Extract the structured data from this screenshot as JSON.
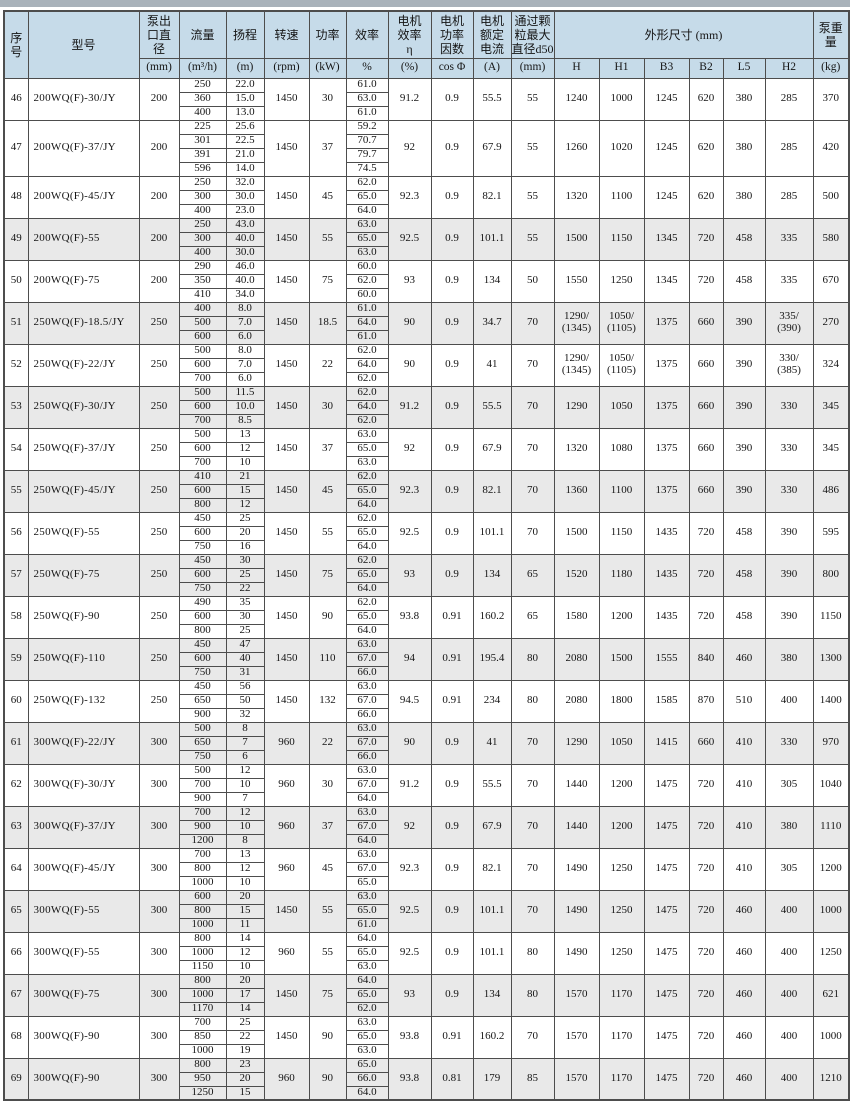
{
  "colors": {
    "header_bg": "#c6dbe9",
    "alt_row_bg": "#e9e9e9",
    "border": "#4d4d4d",
    "top_strip": "#a9b2ba"
  },
  "table": {
    "header": {
      "no": "序\n号",
      "model": "型号",
      "outlet": "泵出\n口直\n径",
      "flow": "流量",
      "head": "扬程",
      "speed": "转速",
      "power": "功率",
      "eff": "效率",
      "motor_eff": "电机\n效率\nη",
      "cos_phi": "电机\n功率\n因数",
      "current": "电机\n额定\n电流",
      "particle": "通过颗\n粒最大\n直径d50",
      "dims": "外形尺寸 (mm)",
      "weight": "泵重\n量",
      "dim_cols": [
        "H",
        "H1",
        "B3",
        "B2",
        "L5",
        "H2"
      ],
      "units": {
        "outlet": "(mm)",
        "flow": "(m³/h)",
        "head": "(m)",
        "speed": "(rpm)",
        "power": "(kW)",
        "eff": "%",
        "motor_eff": "(%)",
        "cos_phi": "cos Φ",
        "current": "(A)",
        "particle": "(mm)",
        "weight": "(kg)"
      }
    },
    "rows": [
      {
        "no": "46",
        "model": "200WQ(F)-30/JY",
        "outlet": "200",
        "flow": [
          "250",
          "360",
          "400"
        ],
        "head": [
          "22.0",
          "15.0",
          "13.0"
        ],
        "speed": "1450",
        "power": "30",
        "eff": [
          "61.0",
          "63.0",
          "61.0"
        ],
        "motor_eff": "91.2",
        "cos_phi": "0.9",
        "current": "55.5",
        "particle": "55",
        "H": "1240",
        "H1": "1000",
        "B3": "1245",
        "B2": "620",
        "L5": "380",
        "H2": "285",
        "weight": "370",
        "shaded": false
      },
      {
        "no": "47",
        "model": "200WQ(F)-37/JY",
        "outlet": "200",
        "flow": [
          "225",
          "301",
          "391",
          "596"
        ],
        "head": [
          "25.6",
          "22.5",
          "21.0",
          "14.0"
        ],
        "speed": "1450",
        "power": "37",
        "eff": [
          "59.2",
          "70.7",
          "79.7",
          "74.5"
        ],
        "motor_eff": "92",
        "cos_phi": "0.9",
        "current": "67.9",
        "particle": "55",
        "H": "1260",
        "H1": "1020",
        "B3": "1245",
        "B2": "620",
        "L5": "380",
        "H2": "285",
        "weight": "420",
        "shaded": false
      },
      {
        "no": "48",
        "model": "200WQ(F)-45/JY",
        "outlet": "200",
        "flow": [
          "250",
          "300",
          "400"
        ],
        "head": [
          "32.0",
          "30.0",
          "23.0"
        ],
        "speed": "1450",
        "power": "45",
        "eff": [
          "62.0",
          "65.0",
          "64.0"
        ],
        "motor_eff": "92.3",
        "cos_phi": "0.9",
        "current": "82.1",
        "particle": "55",
        "H": "1320",
        "H1": "1100",
        "B3": "1245",
        "B2": "620",
        "L5": "380",
        "H2": "285",
        "weight": "500",
        "shaded": false
      },
      {
        "no": "49",
        "model": "200WQ(F)-55",
        "outlet": "200",
        "flow": [
          "250",
          "300",
          "400"
        ],
        "head": [
          "43.0",
          "40.0",
          "30.0"
        ],
        "speed": "1450",
        "power": "55",
        "eff": [
          "63.0",
          "65.0",
          "63.0"
        ],
        "motor_eff": "92.5",
        "cos_phi": "0.9",
        "current": "101.1",
        "particle": "55",
        "H": "1500",
        "H1": "1150",
        "B3": "1345",
        "B2": "720",
        "L5": "458",
        "H2": "335",
        "weight": "580",
        "shaded": true
      },
      {
        "no": "50",
        "model": "200WQ(F)-75",
        "outlet": "200",
        "flow": [
          "290",
          "350",
          "410"
        ],
        "head": [
          "46.0",
          "40.0",
          "34.0"
        ],
        "speed": "1450",
        "power": "75",
        "eff": [
          "60.0",
          "62.0",
          "60.0"
        ],
        "motor_eff": "93",
        "cos_phi": "0.9",
        "current": "134",
        "particle": "50",
        "H": "1550",
        "H1": "1250",
        "B3": "1345",
        "B2": "720",
        "L5": "458",
        "H2": "335",
        "weight": "670",
        "shaded": false
      },
      {
        "no": "51",
        "model": "250WQ(F)-18.5/JY",
        "outlet": "250",
        "flow": [
          "400",
          "500",
          "600"
        ],
        "head": [
          "8.0",
          "7.0",
          "6.0"
        ],
        "speed": "1450",
        "power": "18.5",
        "eff": [
          "61.0",
          "64.0",
          "61.0"
        ],
        "motor_eff": "90",
        "cos_phi": "0.9",
        "current": "34.7",
        "particle": "70",
        "H": "1290/\n(1345)",
        "H1": "1050/\n(1105)",
        "B3": "1375",
        "B2": "660",
        "L5": "390",
        "H2": "335/\n(390)",
        "weight": "270",
        "shaded": true
      },
      {
        "no": "52",
        "model": "250WQ(F)-22/JY",
        "outlet": "250",
        "flow": [
          "500",
          "600",
          "700"
        ],
        "head": [
          "8.0",
          "7.0",
          "6.0"
        ],
        "speed": "1450",
        "power": "22",
        "eff": [
          "62.0",
          "64.0",
          "62.0"
        ],
        "motor_eff": "90",
        "cos_phi": "0.9",
        "current": "41",
        "particle": "70",
        "H": "1290/\n(1345)",
        "H1": "1050/\n(1105)",
        "B3": "1375",
        "B2": "660",
        "L5": "390",
        "H2": "330/\n(385)",
        "weight": "324",
        "shaded": false
      },
      {
        "no": "53",
        "model": "250WQ(F)-30/JY",
        "outlet": "250",
        "flow": [
          "500",
          "600",
          "700"
        ],
        "head": [
          "11.5",
          "10.0",
          "8.5"
        ],
        "speed": "1450",
        "power": "30",
        "eff": [
          "62.0",
          "64.0",
          "62.0"
        ],
        "motor_eff": "91.2",
        "cos_phi": "0.9",
        "current": "55.5",
        "particle": "70",
        "H": "1290",
        "H1": "1050",
        "B3": "1375",
        "B2": "660",
        "L5": "390",
        "H2": "330",
        "weight": "345",
        "shaded": true
      },
      {
        "no": "54",
        "model": "250WQ(F)-37/JY",
        "outlet": "250",
        "flow": [
          "500",
          "600",
          "700"
        ],
        "head": [
          "13",
          "12",
          "10"
        ],
        "speed": "1450",
        "power": "37",
        "eff": [
          "63.0",
          "65.0",
          "63.0"
        ],
        "motor_eff": "92",
        "cos_phi": "0.9",
        "current": "67.9",
        "particle": "70",
        "H": "1320",
        "H1": "1080",
        "B3": "1375",
        "B2": "660",
        "L5": "390",
        "H2": "330",
        "weight": "345",
        "shaded": false
      },
      {
        "no": "55",
        "model": "250WQ(F)-45/JY",
        "outlet": "250",
        "flow": [
          "410",
          "600",
          "800"
        ],
        "head": [
          "21",
          "15",
          "12"
        ],
        "speed": "1450",
        "power": "45",
        "eff": [
          "62.0",
          "65.0",
          "64.0"
        ],
        "motor_eff": "92.3",
        "cos_phi": "0.9",
        "current": "82.1",
        "particle": "70",
        "H": "1360",
        "H1": "1100",
        "B3": "1375",
        "B2": "660",
        "L5": "390",
        "H2": "330",
        "weight": "486",
        "shaded": true
      },
      {
        "no": "56",
        "model": "250WQ(F)-55",
        "outlet": "250",
        "flow": [
          "450",
          "600",
          "750"
        ],
        "head": [
          "25",
          "20",
          "16"
        ],
        "speed": "1450",
        "power": "55",
        "eff": [
          "62.0",
          "65.0",
          "64.0"
        ],
        "motor_eff": "92.5",
        "cos_phi": "0.9",
        "current": "101.1",
        "particle": "70",
        "H": "1500",
        "H1": "1150",
        "B3": "1435",
        "B2": "720",
        "L5": "458",
        "H2": "390",
        "weight": "595",
        "shaded": false
      },
      {
        "no": "57",
        "model": "250WQ(F)-75",
        "outlet": "250",
        "flow": [
          "450",
          "600",
          "750"
        ],
        "head": [
          "30",
          "25",
          "22"
        ],
        "speed": "1450",
        "power": "75",
        "eff": [
          "62.0",
          "65.0",
          "64.0"
        ],
        "motor_eff": "93",
        "cos_phi": "0.9",
        "current": "134",
        "particle": "65",
        "H": "1520",
        "H1": "1180",
        "B3": "1435",
        "B2": "720",
        "L5": "458",
        "H2": "390",
        "weight": "800",
        "shaded": true
      },
      {
        "no": "58",
        "model": "250WQ(F)-90",
        "outlet": "250",
        "flow": [
          "490",
          "600",
          "800"
        ],
        "head": [
          "35",
          "30",
          "25"
        ],
        "speed": "1450",
        "power": "90",
        "eff": [
          "62.0",
          "65.0",
          "64.0"
        ],
        "motor_eff": "93.8",
        "cos_phi": "0.91",
        "current": "160.2",
        "particle": "65",
        "H": "1580",
        "H1": "1200",
        "B3": "1435",
        "B2": "720",
        "L5": "458",
        "H2": "390",
        "weight": "1150",
        "shaded": false
      },
      {
        "no": "59",
        "model": "250WQ(F)-110",
        "outlet": "250",
        "flow": [
          "450",
          "600",
          "750"
        ],
        "head": [
          "47",
          "40",
          "31"
        ],
        "speed": "1450",
        "power": "110",
        "eff": [
          "63.0",
          "67.0",
          "66.0"
        ],
        "motor_eff": "94",
        "cos_phi": "0.91",
        "current": "195.4",
        "particle": "80",
        "H": "2080",
        "H1": "1500",
        "B3": "1555",
        "B2": "840",
        "L5": "460",
        "H2": "380",
        "weight": "1300",
        "shaded": true
      },
      {
        "no": "60",
        "model": "250WQ(F)-132",
        "outlet": "250",
        "flow": [
          "450",
          "650",
          "900"
        ],
        "head": [
          "56",
          "50",
          "32"
        ],
        "speed": "1450",
        "power": "132",
        "eff": [
          "63.0",
          "67.0",
          "66.0"
        ],
        "motor_eff": "94.5",
        "cos_phi": "0.91",
        "current": "234",
        "particle": "80",
        "H": "2080",
        "H1": "1800",
        "B3": "1585",
        "B2": "870",
        "L5": "510",
        "H2": "400",
        "weight": "1400",
        "shaded": false
      },
      {
        "no": "61",
        "model": "300WQ(F)-22/JY",
        "outlet": "300",
        "flow": [
          "500",
          "650",
          "750"
        ],
        "head": [
          "8",
          "7",
          "6"
        ],
        "speed": "960",
        "power": "22",
        "eff": [
          "63.0",
          "67.0",
          "66.0"
        ],
        "motor_eff": "90",
        "cos_phi": "0.9",
        "current": "41",
        "particle": "70",
        "H": "1290",
        "H1": "1050",
        "B3": "1415",
        "B2": "660",
        "L5": "410",
        "H2": "330",
        "weight": "970",
        "shaded": true
      },
      {
        "no": "62",
        "model": "300WQ(F)-30/JY",
        "outlet": "300",
        "flow": [
          "500",
          "700",
          "900"
        ],
        "head": [
          "12",
          "10",
          "7"
        ],
        "speed": "960",
        "power": "30",
        "eff": [
          "63.0",
          "67.0",
          "64.0"
        ],
        "motor_eff": "91.2",
        "cos_phi": "0.9",
        "current": "55.5",
        "particle": "70",
        "H": "1440",
        "H1": "1200",
        "B3": "1475",
        "B2": "720",
        "L5": "410",
        "H2": "305",
        "weight": "1040",
        "shaded": false
      },
      {
        "no": "63",
        "model": "300WQ(F)-37/JY",
        "outlet": "300",
        "flow": [
          "700",
          "900",
          "1200"
        ],
        "head": [
          "12",
          "10",
          "8"
        ],
        "speed": "960",
        "power": "37",
        "eff": [
          "63.0",
          "67.0",
          "64.0"
        ],
        "motor_eff": "92",
        "cos_phi": "0.9",
        "current": "67.9",
        "particle": "70",
        "H": "1440",
        "H1": "1200",
        "B3": "1475",
        "B2": "720",
        "L5": "410",
        "H2": "380",
        "weight": "1110",
        "shaded": true
      },
      {
        "no": "64",
        "model": "300WQ(F)-45/JY",
        "outlet": "300",
        "flow": [
          "700",
          "800",
          "1000"
        ],
        "head": [
          "13",
          "12",
          "10"
        ],
        "speed": "960",
        "power": "45",
        "eff": [
          "63.0",
          "67.0",
          "65.0"
        ],
        "motor_eff": "92.3",
        "cos_phi": "0.9",
        "current": "82.1",
        "particle": "70",
        "H": "1490",
        "H1": "1250",
        "B3": "1475",
        "B2": "720",
        "L5": "410",
        "H2": "305",
        "weight": "1200",
        "shaded": false
      },
      {
        "no": "65",
        "model": "300WQ(F)-55",
        "outlet": "300",
        "flow": [
          "600",
          "800",
          "1000"
        ],
        "head": [
          "20",
          "15",
          "11"
        ],
        "speed": "1450",
        "power": "55",
        "eff": [
          "63.0",
          "65.0",
          "61.0"
        ],
        "motor_eff": "92.5",
        "cos_phi": "0.9",
        "current": "101.1",
        "particle": "70",
        "H": "1490",
        "H1": "1250",
        "B3": "1475",
        "B2": "720",
        "L5": "460",
        "H2": "400",
        "weight": "1000",
        "shaded": true
      },
      {
        "no": "66",
        "model": "300WQ(F)-55",
        "outlet": "300",
        "flow": [
          "800",
          "1000",
          "1150"
        ],
        "head": [
          "14",
          "12",
          "10"
        ],
        "speed": "960",
        "power": "55",
        "eff": [
          "64.0",
          "65.0",
          "63.0"
        ],
        "motor_eff": "92.5",
        "cos_phi": "0.9",
        "current": "101.1",
        "particle": "80",
        "H": "1490",
        "H1": "1250",
        "B3": "1475",
        "B2": "720",
        "L5": "460",
        "H2": "400",
        "weight": "1250",
        "shaded": false
      },
      {
        "no": "67",
        "model": "300WQ(F)-75",
        "outlet": "300",
        "flow": [
          "800",
          "1000",
          "1170"
        ],
        "head": [
          "20",
          "17",
          "14"
        ],
        "speed": "1450",
        "power": "75",
        "eff": [
          "64.0",
          "65.0",
          "62.0"
        ],
        "motor_eff": "93",
        "cos_phi": "0.9",
        "current": "134",
        "particle": "80",
        "H": "1570",
        "H1": "1170",
        "B3": "1475",
        "B2": "720",
        "L5": "460",
        "H2": "400",
        "weight": "621",
        "shaded": true
      },
      {
        "no": "68",
        "model": "300WQ(F)-90",
        "outlet": "300",
        "flow": [
          "700",
          "850",
          "1000"
        ],
        "head": [
          "25",
          "22",
          "19"
        ],
        "speed": "1450",
        "power": "90",
        "eff": [
          "63.0",
          "65.0",
          "63.0"
        ],
        "motor_eff": "93.8",
        "cos_phi": "0.91",
        "current": "160.2",
        "particle": "70",
        "H": "1570",
        "H1": "1170",
        "B3": "1475",
        "B2": "720",
        "L5": "460",
        "H2": "400",
        "weight": "1000",
        "shaded": false
      },
      {
        "no": "69",
        "model": "300WQ(F)-90",
        "outlet": "300",
        "flow": [
          "800",
          "950",
          "1250"
        ],
        "head": [
          "23",
          "20",
          "15"
        ],
        "speed": "960",
        "power": "90",
        "eff": [
          "65.0",
          "66.0",
          "64.0"
        ],
        "motor_eff": "93.8",
        "cos_phi": "0.81",
        "current": "179",
        "particle": "85",
        "H": "1570",
        "H1": "1170",
        "B3": "1475",
        "B2": "720",
        "L5": "460",
        "H2": "400",
        "weight": "1210",
        "shaded": true
      }
    ]
  }
}
